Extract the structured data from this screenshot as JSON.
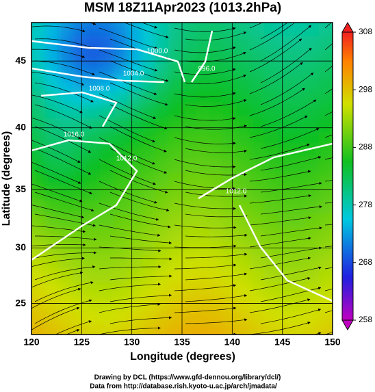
{
  "chart_data": {
    "type": "streamline-map",
    "title": "MSM 18Z11Apr2023 (1013.2hPa)",
    "xlabel": "Longitude (degrees)",
    "ylabel": "Latitude  (degrees)",
    "xlim": [
      120,
      150
    ],
    "ylim": [
      22.1,
      47.7
    ],
    "xticks": [
      120,
      125,
      130,
      135,
      140,
      145,
      150
    ],
    "yticks": [
      25,
      30,
      35,
      40,
      45
    ],
    "projection": "mercator",
    "grid": true,
    "colorbar": {
      "clim": [
        258,
        308
      ],
      "ticks": [
        258,
        268,
        278,
        288,
        298,
        308
      ]
    },
    "contour_labels": [
      "1000.0",
      "1004.0",
      "1008.0",
      "996.0",
      "1016.0",
      "1012.0",
      "1012.0"
    ],
    "footer": [
      "Drawing by DCL (https://www.gfd-dennou.org/library/dcl/)",
      "Data from http://database.rish.kyoto-u.ac.jp/arch/jmadata/"
    ]
  }
}
